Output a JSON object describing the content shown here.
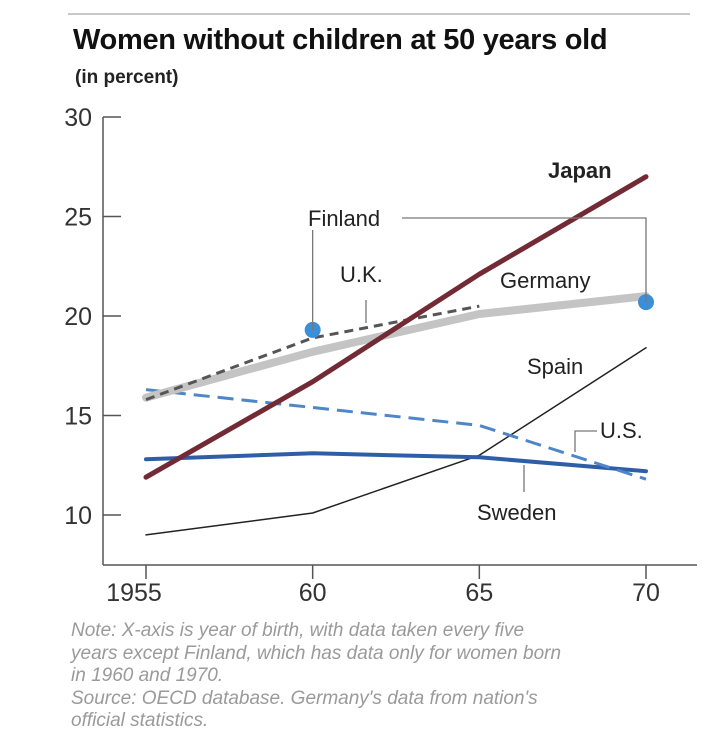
{
  "chart_data": {
    "type": "line",
    "title": "Women without children at 50 years old",
    "subtitle": "(in percent)",
    "xlabel": "",
    "ylabel": "",
    "x": [
      1955,
      1960,
      1965,
      1970
    ],
    "x_tick_labels": [
      "1955",
      "60",
      "65",
      "70"
    ],
    "y_ticks": [
      10,
      15,
      20,
      25,
      30
    ],
    "xlim": [
      1955,
      1970
    ],
    "ylim": [
      9,
      30
    ],
    "grid": false,
    "legend": "inline labels",
    "series": [
      {
        "name": "Japan",
        "color": "#722a35",
        "style": "solid",
        "width": 5,
        "points": [
          [
            1955,
            11.9
          ],
          [
            1960,
            16.7
          ],
          [
            1965,
            22.1
          ],
          [
            1970,
            27.0
          ]
        ]
      },
      {
        "name": "Germany",
        "color": "#c4c4c4",
        "style": "solid",
        "width": 8,
        "points": [
          [
            1955,
            15.9
          ],
          [
            1960,
            18.2
          ],
          [
            1965,
            20.1
          ],
          [
            1970,
            21.0
          ]
        ]
      },
      {
        "name": "U.K.",
        "color": "#555555",
        "style": "dashed",
        "width": 3,
        "points": [
          [
            1955,
            15.8
          ],
          [
            1960,
            18.9
          ],
          [
            1965,
            20.5
          ]
        ]
      },
      {
        "name": "Finland",
        "color": "#3a8fd6",
        "style": "markers",
        "width": 0,
        "points": [
          [
            1960,
            19.3
          ],
          [
            1970,
            20.7
          ]
        ]
      },
      {
        "name": "Spain",
        "color": "#222222",
        "style": "solid",
        "width": 1.5,
        "points": [
          [
            1955,
            9.0
          ],
          [
            1960,
            10.1
          ],
          [
            1965,
            13.0
          ],
          [
            1970,
            18.4
          ]
        ]
      },
      {
        "name": "U.S.",
        "color": "#4f86c6",
        "style": "dashed",
        "width": 3,
        "points": [
          [
            1955,
            16.3
          ],
          [
            1960,
            15.4
          ],
          [
            1965,
            14.5
          ],
          [
            1970,
            11.8
          ]
        ]
      },
      {
        "name": "Sweden",
        "color": "#2f5ea8",
        "style": "solid",
        "width": 4,
        "points": [
          [
            1955,
            12.8
          ],
          [
            1960,
            13.1
          ],
          [
            1965,
            12.9
          ],
          [
            1970,
            12.2
          ]
        ]
      }
    ]
  },
  "note": {
    "lines": [
      "Note: X-axis is year of birth, with data taken every five",
      "years except Finland, which has data only for women born",
      "in 1960 and 1970.",
      "Source: OECD database. Germany's data from nation's",
      "official statistics."
    ]
  }
}
